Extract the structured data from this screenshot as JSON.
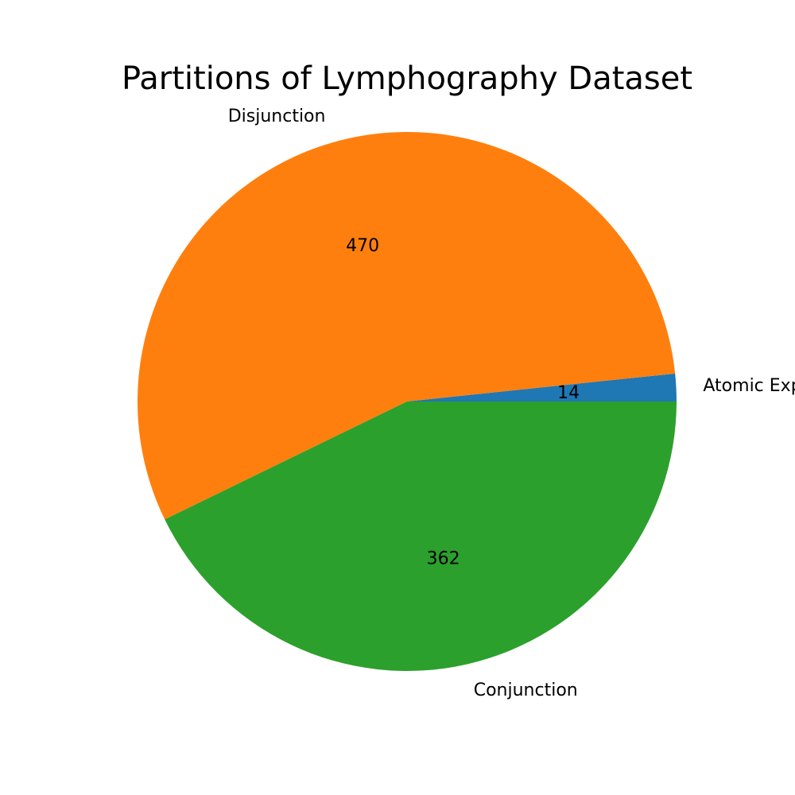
{
  "chart_data": {
    "type": "pie",
    "title": "Partitions of Lymphography Dataset",
    "categories": [
      "Atomic Expressions",
      "Disjunction",
      "Conjunction"
    ],
    "values": [
      14,
      470,
      362
    ],
    "value_labels": [
      "14",
      "470",
      "362"
    ],
    "colors": [
      "#1f77b4",
      "#ff7f0e",
      "#2ca02c"
    ],
    "start_angle_deg": 0,
    "direction": "counterclockwise",
    "legend": "none"
  }
}
